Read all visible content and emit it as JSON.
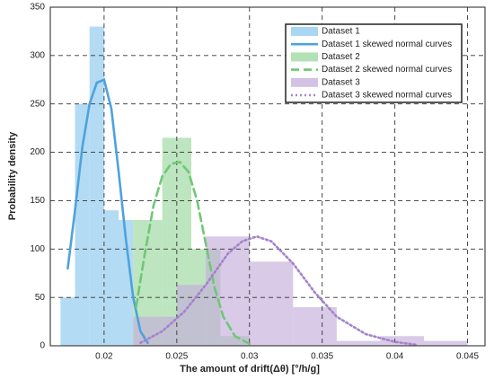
{
  "chart_data": {
    "type": "histogram",
    "xlabel": "The amount of drift(Δθ) [°/h/g]",
    "ylabel": "Probability density",
    "xlim": [
      0.0163,
      0.0462
    ],
    "ylim": [
      0,
      350
    ],
    "xticks": [
      0.02,
      0.025,
      0.03,
      0.035,
      0.04,
      0.045
    ],
    "yticks": [
      0,
      50,
      100,
      150,
      200,
      250,
      300,
      350
    ],
    "grid": true,
    "legend": "upper right",
    "series": [
      {
        "name": "Dataset 1",
        "color": "#8cc8ee",
        "bins": [
          0.017,
          0.018,
          0.019,
          0.02,
          0.021,
          0.022
        ],
        "values": [
          50,
          250,
          330,
          140,
          130
        ]
      },
      {
        "name": "Dataset 2",
        "color": "#9ad79c",
        "bins": [
          0.022,
          0.024,
          0.026,
          0.028,
          0.03
        ],
        "values": [
          130,
          215,
          100,
          10
        ]
      },
      {
        "name": "Dataset 3",
        "color": "#c4aedb",
        "bins": [
          0.022,
          0.025,
          0.027,
          0.03,
          0.033,
          0.036,
          0.039,
          0.042,
          0.045
        ],
        "values": [
          30,
          63,
          113,
          87,
          40,
          5,
          10,
          5
        ]
      }
    ],
    "curves": [
      {
        "name": "Dataset 1 skewed normal curves",
        "color": "#4da3dc",
        "style": "solid",
        "x": [
          0.0175,
          0.018,
          0.0185,
          0.019,
          0.0195,
          0.02,
          0.0205,
          0.021,
          0.0215,
          0.022,
          0.0225,
          0.023
        ],
        "values": [
          80,
          140,
          205,
          250,
          272,
          275,
          245,
          180,
          110,
          50,
          15,
          3
        ]
      },
      {
        "name": "Dataset 2 skewed normal curves",
        "color": "#70c776",
        "style": "dashed",
        "x": [
          0.0222,
          0.0228,
          0.0234,
          0.024,
          0.0246,
          0.0252,
          0.0258,
          0.0264,
          0.027,
          0.0276,
          0.0282,
          0.029,
          0.03
        ],
        "values": [
          40,
          95,
          145,
          175,
          188,
          190,
          180,
          150,
          105,
          60,
          30,
          10,
          2
        ]
      },
      {
        "name": "Dataset 3 skewed normal curves",
        "color": "#a483cc",
        "style": "dotted",
        "x": [
          0.0225,
          0.024,
          0.0255,
          0.027,
          0.0285,
          0.0295,
          0.0305,
          0.0315,
          0.033,
          0.0345,
          0.036,
          0.038,
          0.04,
          0.0415
        ],
        "values": [
          3,
          15,
          35,
          63,
          95,
          108,
          113,
          108,
          85,
          55,
          30,
          12,
          4,
          1
        ]
      }
    ]
  }
}
